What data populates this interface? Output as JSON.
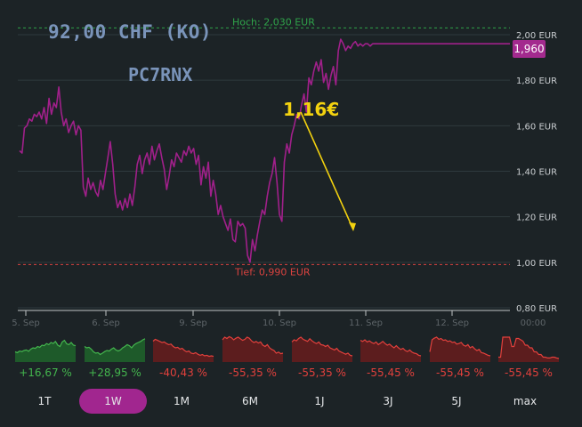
{
  "header": {
    "title": "92,00 CHF (KO)",
    "code": "PC7RNX"
  },
  "annotation": "1,16€",
  "price_badge": "1,960",
  "colors": {
    "line": "#a0208a",
    "positive": "#43b54d",
    "negative": "#e2403c",
    "annotation": "#f3d20f",
    "active_tab": "#a1268f"
  },
  "chart_data": {
    "type": "line",
    "x_ticks": [
      "5. Sep",
      "6. Sep",
      "9. Sep",
      "10. Sep",
      "11. Sep",
      "12. Sep",
      "00:00"
    ],
    "y_ticks": [
      "2,00 EUR",
      "1,80 EUR",
      "1,60 EUR",
      "1,40 EUR",
      "1,20 EUR",
      "1,00 EUR",
      "0,80 EUR"
    ],
    "ylim": [
      0.8,
      2.0
    ],
    "high_label": "Hoch: 2,030 EUR",
    "high": 2.03,
    "low_label": "Tief: 0,990 EUR",
    "low": 0.99,
    "last": 1.96,
    "grid": true,
    "series": [
      {
        "x": [
          0,
          0.3,
          0.6,
          0.9,
          1.2,
          1.5,
          1.8,
          2.1,
          2.4,
          2.7,
          3.0,
          3.3,
          3.6,
          3.9,
          4.2,
          4.5,
          4.8,
          5.1,
          5.4,
          5.7,
          6.0,
          6.3,
          6.6,
          6.9,
          7.2,
          7.5,
          7.8,
          8.1,
          8.4,
          8.7,
          9.0,
          9.3,
          9.6,
          9.9,
          10.2,
          10.5,
          10.8,
          11.1,
          11.4,
          11.7,
          12.0,
          12.3,
          12.6,
          12.9,
          13.2,
          13.5,
          13.8,
          14.1,
          14.4,
          14.7,
          15.0,
          15.3,
          15.6,
          15.9,
          16.2,
          16.5,
          16.8,
          17.1,
          17.4,
          17.7,
          18.0,
          18.3,
          18.6,
          18.9,
          19.2,
          19.5,
          19.8,
          20.1,
          20.4,
          20.7,
          21.0,
          21.3,
          21.6,
          21.9,
          22.2,
          22.5,
          22.8,
          23.1,
          23.4,
          23.7,
          24.0,
          24.3,
          24.6,
          24.9,
          25.2,
          25.5,
          25.8,
          26.1,
          26.4,
          26.7,
          27.0,
          27.3,
          27.6,
          27.9,
          28.2,
          28.5,
          28.8,
          29.1,
          29.4,
          29.7,
          30.0,
          30.3,
          30.6,
          30.9,
          31.2,
          31.5,
          31.8,
          32.1,
          32.4,
          32.7,
          33.0,
          33.3,
          33.6,
          33.9,
          34.2,
          34.5,
          34.8,
          35.1,
          35.4,
          35.7,
          36.0,
          36.3,
          36.6,
          36.9,
          37.2,
          37.5,
          37.8,
          38.1,
          38.4,
          38.7,
          39.0,
          39.3,
          39.6,
          39.9,
          40.2,
          40.5,
          40.8,
          41.1,
          41.4,
          41.7,
          42.0,
          42.3,
          42.6,
          42.9,
          43.2,
          43.5,
          43.8,
          44.1,
          44.4,
          44.7,
          45.0,
          45.3,
          45.6,
          45.9,
          46.2,
          46.5,
          46.8,
          47.1,
          47.4,
          47.7,
          48.0,
          48.3,
          48.6,
          48.9,
          49.2,
          49.5,
          49.8,
          50.1,
          50.4,
          50.7,
          51.0,
          51.3,
          51.6,
          51.9,
          52.2,
          52.5,
          52.8,
          53.1,
          53.4,
          53.7,
          54.0,
          54.3,
          54.6,
          54.9,
          55.2,
          55.5,
          55.8,
          56.1,
          56.4,
          56.7,
          57.0,
          57.3,
          57.6,
          57.9,
          58.2,
          58.5,
          58.8,
          59.1,
          59.4,
          59.7,
          60.0
        ],
        "values": [
          1.49,
          1.48,
          1.59,
          1.6,
          1.63,
          1.62,
          1.65,
          1.64,
          1.66,
          1.63,
          1.68,
          1.61,
          1.72,
          1.65,
          1.7,
          1.68,
          1.77,
          1.66,
          1.6,
          1.63,
          1.57,
          1.6,
          1.62,
          1.56,
          1.6,
          1.58,
          1.33,
          1.29,
          1.37,
          1.32,
          1.35,
          1.31,
          1.29,
          1.36,
          1.32,
          1.39,
          1.46,
          1.53,
          1.43,
          1.3,
          1.24,
          1.27,
          1.23,
          1.28,
          1.24,
          1.3,
          1.25,
          1.33,
          1.43,
          1.47,
          1.39,
          1.45,
          1.48,
          1.43,
          1.51,
          1.45,
          1.49,
          1.52,
          1.46,
          1.41,
          1.32,
          1.38,
          1.45,
          1.42,
          1.48,
          1.46,
          1.44,
          1.49,
          1.47,
          1.51,
          1.48,
          1.5,
          1.43,
          1.47,
          1.34,
          1.42,
          1.37,
          1.44,
          1.29,
          1.36,
          1.3,
          1.21,
          1.25,
          1.2,
          1.17,
          1.14,
          1.19,
          1.1,
          1.09,
          1.18,
          1.16,
          1.17,
          1.15,
          1.03,
          1.0,
          1.1,
          1.05,
          1.12,
          1.18,
          1.23,
          1.21,
          1.29,
          1.35,
          1.39,
          1.46,
          1.35,
          1.21,
          1.18,
          1.44,
          1.52,
          1.48,
          1.56,
          1.6,
          1.65,
          1.63,
          1.69,
          1.74,
          1.66,
          1.81,
          1.78,
          1.84,
          1.88,
          1.84,
          1.89,
          1.79,
          1.83,
          1.76,
          1.82,
          1.86,
          1.78,
          1.93,
          1.98,
          1.96,
          1.93,
          1.95,
          1.94,
          1.96,
          1.97,
          1.95,
          1.96,
          1.95,
          1.96,
          1.96,
          1.95,
          1.96,
          1.96,
          1.96,
          1.96,
          1.96,
          1.96,
          1.96,
          1.96,
          1.96,
          1.96,
          1.96,
          1.96,
          1.96,
          1.96,
          1.96,
          1.96,
          1.96,
          1.96,
          1.96,
          1.96,
          1.96,
          1.96,
          1.96,
          1.96,
          1.96,
          1.96,
          1.96,
          1.96,
          1.96,
          1.96,
          1.96,
          1.96,
          1.96,
          1.96,
          1.96,
          1.96,
          1.96,
          1.96,
          1.96,
          1.96,
          1.96,
          1.96,
          1.96,
          1.96,
          1.96,
          1.96,
          1.96,
          1.96,
          1.96,
          1.96,
          1.96,
          1.96,
          1.96,
          1.96,
          1.96,
          1.96,
          1.96
        ]
      }
    ]
  },
  "mini_charts": [
    {
      "label": "+16,67 %",
      "trend": "positive",
      "values": [
        0.35,
        0.32,
        0.38,
        0.36,
        0.4,
        0.42,
        0.37,
        0.45,
        0.5,
        0.48,
        0.55,
        0.52,
        0.6,
        0.58,
        0.66,
        0.62,
        0.7,
        0.66,
        0.74,
        0.6,
        0.55,
        0.72,
        0.78,
        0.65,
        0.62,
        0.7,
        0.6,
        0.58
      ]
    },
    {
      "label": "+28,95 %",
      "trend": "positive",
      "values": [
        0.55,
        0.5,
        0.52,
        0.45,
        0.35,
        0.3,
        0.32,
        0.25,
        0.3,
        0.36,
        0.4,
        0.38,
        0.45,
        0.5,
        0.42,
        0.38,
        0.42,
        0.5,
        0.55,
        0.62,
        0.58,
        0.5,
        0.6,
        0.66,
        0.7,
        0.74,
        0.8,
        0.84
      ]
    },
    {
      "label": "-40,43 %",
      "trend": "negative",
      "values": [
        0.75,
        0.82,
        0.78,
        0.74,
        0.7,
        0.72,
        0.66,
        0.62,
        0.64,
        0.55,
        0.5,
        0.52,
        0.45,
        0.48,
        0.4,
        0.35,
        0.38,
        0.3,
        0.28,
        0.32,
        0.26,
        0.22,
        0.25,
        0.2,
        0.22,
        0.18,
        0.2,
        0.18
      ]
    },
    {
      "label": "-55,35 %",
      "trend": "negative",
      "values": [
        0.8,
        0.9,
        0.85,
        0.92,
        0.88,
        0.8,
        0.86,
        0.9,
        0.84,
        0.78,
        0.82,
        0.9,
        0.86,
        0.76,
        0.7,
        0.74,
        0.68,
        0.72,
        0.6,
        0.55,
        0.62,
        0.5,
        0.44,
        0.4,
        0.3,
        0.34,
        0.28,
        0.3
      ]
    },
    {
      "label": "-55,35 %",
      "trend": "negative",
      "values": [
        0.72,
        0.8,
        0.76,
        0.85,
        0.9,
        0.82,
        0.78,
        0.74,
        0.84,
        0.76,
        0.7,
        0.66,
        0.72,
        0.62,
        0.6,
        0.55,
        0.6,
        0.5,
        0.46,
        0.42,
        0.48,
        0.38,
        0.34,
        0.3,
        0.26,
        0.3,
        0.22,
        0.2
      ]
    },
    {
      "label": "-55,45 %",
      "trend": "negative",
      "values": [
        0.78,
        0.74,
        0.8,
        0.72,
        0.76,
        0.7,
        0.66,
        0.72,
        0.62,
        0.68,
        0.74,
        0.66,
        0.6,
        0.64,
        0.56,
        0.5,
        0.58,
        0.5,
        0.44,
        0.48,
        0.4,
        0.36,
        0.42,
        0.34,
        0.3,
        0.28,
        0.22,
        0.2
      ]
    },
    {
      "label": "-55,45 %",
      "trend": "negative",
      "values": [
        0.35,
        0.8,
        0.86,
        0.9,
        0.82,
        0.85,
        0.78,
        0.8,
        0.74,
        0.76,
        0.7,
        0.72,
        0.64,
        0.66,
        0.7,
        0.6,
        0.56,
        0.62,
        0.5,
        0.55,
        0.46,
        0.4,
        0.44,
        0.32,
        0.3,
        0.26,
        0.22,
        0.2
      ]
    },
    {
      "label": "-55,45 %",
      "trend": "negative",
      "values": [
        0.15,
        0.15,
        0.9,
        0.9,
        0.9,
        0.9,
        0.55,
        0.55,
        0.85,
        0.85,
        0.8,
        0.75,
        0.6,
        0.6,
        0.5,
        0.5,
        0.35,
        0.35,
        0.25,
        0.25,
        0.15,
        0.15,
        0.12,
        0.12,
        0.15,
        0.15,
        0.12,
        0.1
      ]
    }
  ],
  "ranges": [
    {
      "label": "1T",
      "active": false
    },
    {
      "label": "1W",
      "active": true
    },
    {
      "label": "1M",
      "active": false
    },
    {
      "label": "6M",
      "active": false
    },
    {
      "label": "1J",
      "active": false
    },
    {
      "label": "3J",
      "active": false
    },
    {
      "label": "5J",
      "active": false
    },
    {
      "label": "max",
      "active": false
    }
  ]
}
